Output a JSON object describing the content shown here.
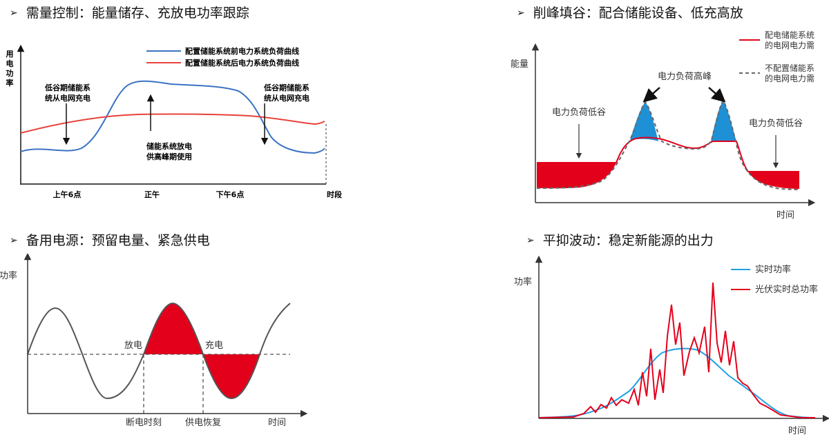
{
  "panels": {
    "demand": {
      "bullet": "➢",
      "title": "需量控制：能量储存、充放电功率跟踪",
      "y_label": [
        "用",
        "电",
        "功",
        "率"
      ],
      "legend": [
        "配置储能系统前电力系统负荷曲线",
        "配置储能系统后电力系统负荷曲线"
      ],
      "ann_left": [
        "低谷期储能系",
        "统从电网充电"
      ],
      "ann_mid": [
        "储能系统放电",
        "供高峰期使用"
      ],
      "ann_right": [
        "低谷期储能系",
        "统从电网充电"
      ],
      "x_ticks": [
        "上午6点",
        "正午",
        "下午6点"
      ],
      "x_label": "时段",
      "colors": {
        "before": "#3a72c4",
        "after": "#e8413a"
      }
    },
    "peak": {
      "bullet": "➢",
      "title": "削峰填谷：配合储能设备、低充高放",
      "y_label": "能量",
      "legend": [
        [
          "配电储能系统",
          "的电网电力需"
        ],
        [
          "不配置储能系",
          "的电网电力需"
        ]
      ],
      "ann_peak": "电力负荷高峰",
      "ann_low_left": "电力负荷低谷",
      "ann_low_right": "电力负荷低谷",
      "x_label": "时间",
      "colors": {
        "fill_valley": "#e3001b",
        "fill_peak": "#1e90d6",
        "line": "#e3001b",
        "dashed": "#666666"
      }
    },
    "backup": {
      "bullet": "➢",
      "title": "备用电源：预留电量、紧急供电",
      "y_label": "功率",
      "ann_discharge": "放电",
      "ann_charge": "充电",
      "x_marks": [
        "断电时刻",
        "供电恢复"
      ],
      "x_label": "时间",
      "colors": {
        "fill": "#e3001b",
        "curve": "#555555"
      }
    },
    "smooth": {
      "bullet": "➢",
      "title": "平抑波动：稳定新能源的出力",
      "y_label": "功率",
      "legend": [
        "实时功率",
        "光伏实时总功率"
      ],
      "x_label": "时间",
      "colors": {
        "realtime": "#1ea0e6",
        "pv": "#e3001b"
      }
    }
  }
}
